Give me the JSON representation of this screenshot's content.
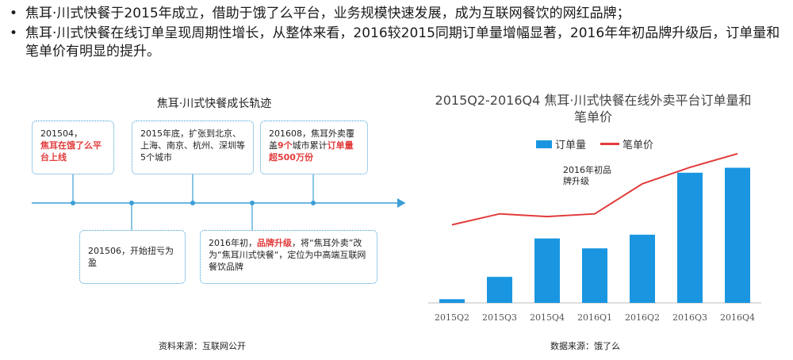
{
  "bullets": [
    {
      "marker": "•",
      "text": "焦耳·川式快餐于2015年成立，借助于饿了么平台，业务规模快速发展，成为互联网餐饮的网红品牌；"
    },
    {
      "marker": "•",
      "text": "焦耳·川式快餐在线订单呈现周期性增长，从整体来看，2016较2015同期订单量增幅显著，2016年年初品牌升级后，订单量和笔单价有明显的提升。"
    }
  ],
  "timeline": {
    "title": "焦耳·川式快餐成长轨迹",
    "events": [
      {
        "parts": [
          {
            "t": "201504，",
            "red": false
          },
          {
            "t": "焦耳在饿了么平台上线",
            "red": true
          }
        ]
      },
      {
        "parts": [
          {
            "t": "2015年底，扩张到北京、上海、南京、杭州、深圳等5个城市",
            "red": false
          }
        ]
      },
      {
        "parts": [
          {
            "t": "201608，焦耳外卖覆盖",
            "red": false
          },
          {
            "t": "9个",
            "red": true
          },
          {
            "t": "城市累计",
            "red": false
          },
          {
            "t": "订单量超500万份",
            "red": true
          }
        ]
      },
      {
        "parts": [
          {
            "t": "201506，开始扭亏为盈",
            "red": false
          }
        ]
      },
      {
        "parts": [
          {
            "t": "2016年初，",
            "red": false
          },
          {
            "t": "品牌升级",
            "red": true
          },
          {
            "t": "，将“焦耳外卖”改为“焦耳川式快餐“，定位为中高端互联网餐饮品牌",
            "red": false
          }
        ]
      }
    ],
    "source": "资料来源：互联网公开"
  },
  "chart_data": {
    "type": "bar",
    "title": "2015Q2-2016Q4 焦耳·川式快餐在线外卖平台订单量和笔单价",
    "categories": [
      "2015Q2",
      "2015Q3",
      "2015Q4",
      "2016Q1",
      "2016Q2",
      "2016Q3",
      "2016Q4"
    ],
    "series": [
      {
        "name": "订单量",
        "kind": "bar",
        "color": "#1a96e0",
        "values": [
          3,
          21,
          52,
          44,
          55,
          105,
          109
        ]
      },
      {
        "name": "笔单价",
        "kind": "line",
        "color": "#e23b3b",
        "values": [
          40,
          44,
          43,
          44,
          55,
          61,
          66
        ]
      }
    ],
    "annotation": "2016年初品牌升级",
    "legend_position": "top",
    "grid": false,
    "source": "数据来源：饿了么"
  }
}
